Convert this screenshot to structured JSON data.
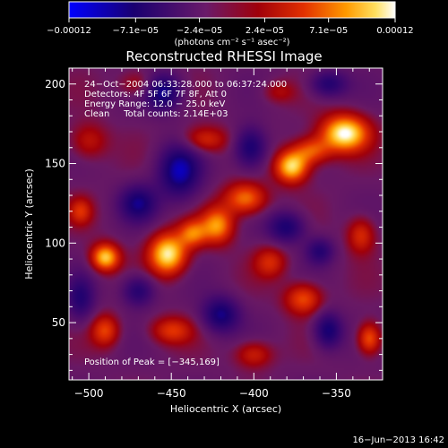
{
  "chart_data": {
    "type": "heatmap",
    "title": "Reconstructed RHESSI Image",
    "xlabel": "Heliocentric X (arcsec)",
    "ylabel": "Heliocentric Y (arcsec)",
    "xlim": [
      -512,
      -322
    ],
    "ylim": [
      14,
      210
    ],
    "x_ticks": [
      -500,
      -450,
      -400,
      -350
    ],
    "y_ticks": [
      50,
      100,
      150,
      200
    ],
    "x_tick_labels": [
      "−500",
      "−450",
      "−400",
      "−350"
    ],
    "colorbar": {
      "min": -0.00012,
      "max": 0.00012,
      "ticks": [
        -0.00012,
        -7.1e-05,
        -2.4e-05,
        2.4e-05,
        7.1e-05,
        0.00012
      ],
      "tick_labels": [
        "−0.00012",
        "−7.1e−05",
        "−2.4e−05",
        "2.4e−05",
        "7.1e−05",
        "0.00012"
      ],
      "units_text": "(photons cm⁻² s⁻¹ asec⁻²)",
      "colormap": [
        "#0000ff",
        "#1a0070",
        "#6a1a6a",
        "#a0000a",
        "#e23000",
        "#ff9a00",
        "#ffe060",
        "#ffffff"
      ]
    },
    "annotations": [
      "24−Oct−2004 06:33:28.000 to 06:37:24.000",
      "Detectors: 4F 5F 6F 7F 8F, Att 0",
      "Energy Range: 12.0 − 25.0 keV",
      "Clean     Total counts: 2.14E+03"
    ],
    "peak_text": "Position of Peak = [−345,169]",
    "peak": [
      -345,
      169
    ],
    "sources": [
      {
        "x": -345,
        "y": 169,
        "v": 1.0,
        "sx": 10,
        "sy": 8
      },
      {
        "x": -365,
        "y": 158,
        "v": 0.55,
        "sx": 8,
        "sy": 6
      },
      {
        "x": -377,
        "y": 148,
        "v": 0.9,
        "sx": 7,
        "sy": 7
      },
      {
        "x": -405,
        "y": 128,
        "v": 0.65,
        "sx": 9,
        "sy": 7
      },
      {
        "x": -422,
        "y": 111,
        "v": 0.7,
        "sx": 7,
        "sy": 8
      },
      {
        "x": -452,
        "y": 93,
        "v": 0.95,
        "sx": 8,
        "sy": 9
      },
      {
        "x": -437,
        "y": 106,
        "v": 0.55,
        "sx": 6,
        "sy": 6
      },
      {
        "x": -490,
        "y": 91,
        "v": 0.85,
        "sx": 6,
        "sy": 6
      },
      {
        "x": -500,
        "y": 164,
        "v": 0.35,
        "sx": 8,
        "sy": 8
      },
      {
        "x": -430,
        "y": 165,
        "v": 0.45,
        "sx": 10,
        "sy": 6
      },
      {
        "x": -390,
        "y": 88,
        "v": 0.4,
        "sx": 7,
        "sy": 7
      },
      {
        "x": -370,
        "y": 65,
        "v": 0.55,
        "sx": 8,
        "sy": 7
      },
      {
        "x": -330,
        "y": 40,
        "v": 0.6,
        "sx": 5,
        "sy": 7
      },
      {
        "x": -450,
        "y": 45,
        "v": 0.45,
        "sx": 9,
        "sy": 6
      },
      {
        "x": -490,
        "y": 45,
        "v": 0.5,
        "sx": 6,
        "sy": 7
      },
      {
        "x": -400,
        "y": 30,
        "v": 0.4,
        "sx": 8,
        "sy": 6
      },
      {
        "x": -335,
        "y": 105,
        "v": 0.45,
        "sx": 6,
        "sy": 8
      },
      {
        "x": -505,
        "y": 120,
        "v": 0.4,
        "sx": 5,
        "sy": 6
      },
      {
        "x": -470,
        "y": 200,
        "v": 0.3,
        "sx": 8,
        "sy": 6
      },
      {
        "x": -445,
        "y": 145,
        "v": -0.7,
        "sx": 9,
        "sy": 12
      },
      {
        "x": -455,
        "y": 195,
        "v": -0.65,
        "sx": 8,
        "sy": 8
      },
      {
        "x": -470,
        "y": 125,
        "v": -0.55,
        "sx": 8,
        "sy": 8
      },
      {
        "x": -402,
        "y": 160,
        "v": -0.6,
        "sx": 7,
        "sy": 9
      },
      {
        "x": -380,
        "y": 110,
        "v": -0.55,
        "sx": 8,
        "sy": 7
      },
      {
        "x": -420,
        "y": 55,
        "v": -0.6,
        "sx": 8,
        "sy": 8
      },
      {
        "x": -470,
        "y": 70,
        "v": -0.5,
        "sx": 7,
        "sy": 7
      },
      {
        "x": -355,
        "y": 45,
        "v": -0.6,
        "sx": 6,
        "sy": 8
      },
      {
        "x": -505,
        "y": 65,
        "v": -0.45,
        "sx": 6,
        "sy": 10
      },
      {
        "x": -355,
        "y": 200,
        "v": -0.5,
        "sx": 8,
        "sy": 6
      },
      {
        "x": -360,
        "y": 95,
        "v": -0.45,
        "sx": 6,
        "sy": 6
      },
      {
        "x": -385,
        "y": 195,
        "v": 0.25,
        "sx": 7,
        "sy": 5
      }
    ]
  },
  "footer": {
    "timestamp": "16−Jun−2013 16:42"
  }
}
